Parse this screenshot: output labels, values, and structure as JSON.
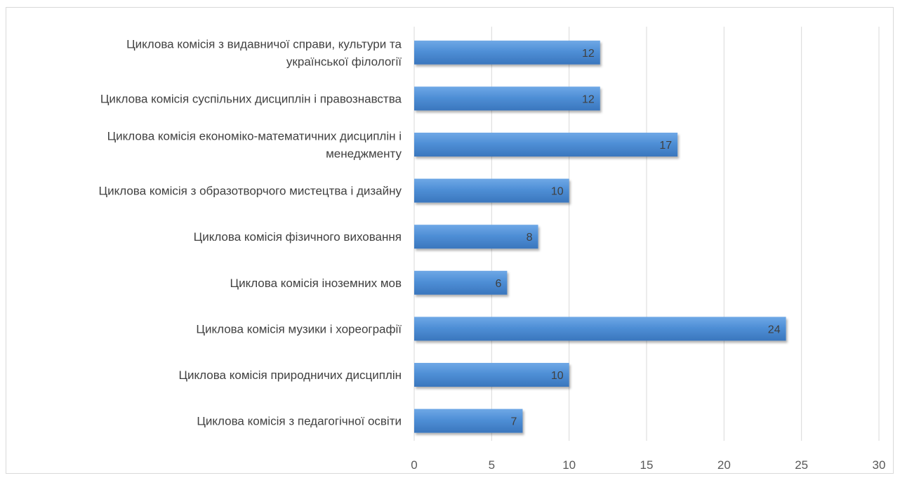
{
  "chart_data": {
    "type": "bar",
    "orientation": "horizontal",
    "categories": [
      [
        "Циклова комісія з видавничої справи, культури та",
        "української філології"
      ],
      [
        "Циклова комісія суспільних дисциплін і правознавства"
      ],
      [
        "Циклова комісія економіко-математичних дисциплін і",
        "менеджменту"
      ],
      [
        "Циклова комісія з образотворчого мистецтва і дизайну"
      ],
      [
        "Циклова комісія  фізичного виховання"
      ],
      [
        "Циклова комісія іноземних мов"
      ],
      [
        "Циклова комісія музики і хореографії"
      ],
      [
        "Циклова комісія природничих дисциплін"
      ],
      [
        "Циклова комісія з педагогічної освіти"
      ]
    ],
    "values": [
      12,
      12,
      17,
      10,
      8,
      6,
      24,
      10,
      7
    ],
    "xlim": [
      0,
      30
    ],
    "xticks": [
      0,
      5,
      10,
      15,
      20,
      25,
      30
    ],
    "grid": true,
    "legend": "none",
    "bar_color": "#4f8fd6",
    "data_labels": true
  }
}
